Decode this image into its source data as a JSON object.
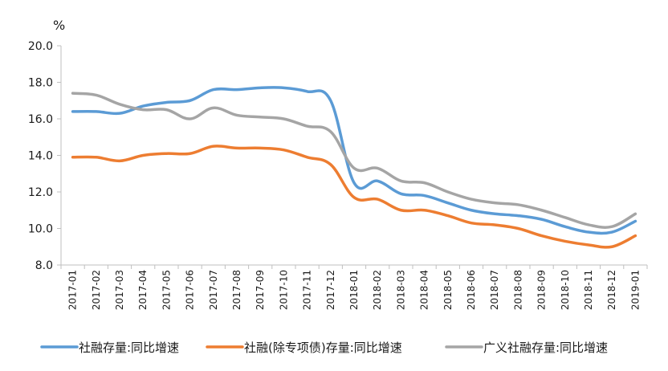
{
  "chart_data": {
    "type": "line",
    "unit_label": "%",
    "categories": [
      "2017-01",
      "2017-02",
      "2017-03",
      "2017-04",
      "2017-05",
      "2017-06",
      "2017-07",
      "2017-08",
      "2017-09",
      "2017-10",
      "2017-11",
      "2017-12",
      "2018-01",
      "2018-02",
      "2018-03",
      "2018-04",
      "2018-05",
      "2018-06",
      "2018-07",
      "2018-08",
      "2018-09",
      "2018-10",
      "2018-11",
      "2018-12",
      "2019-01"
    ],
    "ylim": [
      8.0,
      20.0
    ],
    "yticks": [
      "8.0",
      "10.0",
      "12.0",
      "14.0",
      "16.0",
      "18.0",
      "20.0"
    ],
    "grid": false,
    "legend_position": "bottom",
    "series": [
      {
        "name": "社融存量:同比增速",
        "color": "#5b9bd5",
        "values": [
          16.4,
          16.4,
          16.3,
          16.7,
          16.9,
          17.0,
          17.6,
          17.6,
          17.7,
          17.7,
          17.5,
          17.0,
          12.5,
          12.6,
          11.9,
          11.8,
          11.4,
          11.0,
          10.8,
          10.7,
          10.5,
          10.1,
          9.8,
          9.8,
          10.4
        ]
      },
      {
        "name": "社融(除专项债)存量:同比增速",
        "color": "#ed7d31",
        "values": [
          13.9,
          13.9,
          13.7,
          14.0,
          14.1,
          14.1,
          14.5,
          14.4,
          14.4,
          14.3,
          13.9,
          13.5,
          11.7,
          11.6,
          11.0,
          11.0,
          10.7,
          10.3,
          10.2,
          10.0,
          9.6,
          9.3,
          9.1,
          9.0,
          9.6
        ]
      },
      {
        "name": "广义社融存量:同比增速",
        "color": "#a5a5a5",
        "values": [
          17.4,
          17.3,
          16.8,
          16.5,
          16.5,
          16.0,
          16.6,
          16.2,
          16.1,
          16.0,
          15.6,
          15.3,
          13.3,
          13.3,
          12.6,
          12.5,
          12.0,
          11.6,
          11.4,
          11.3,
          11.0,
          10.6,
          10.2,
          10.1,
          10.8
        ]
      }
    ]
  }
}
